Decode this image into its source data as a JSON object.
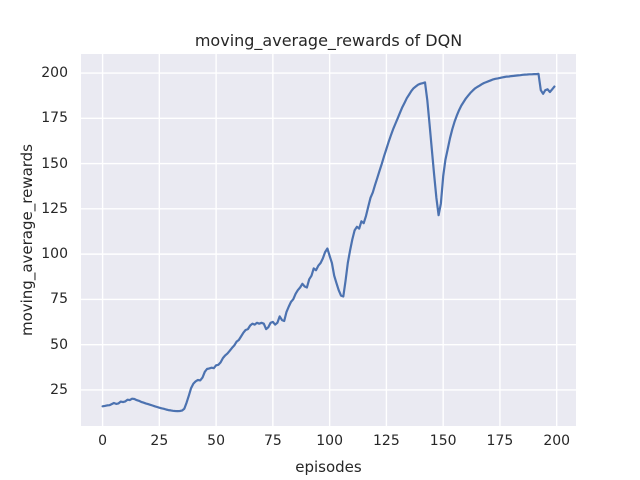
{
  "chart_data": {
    "type": "line",
    "title": "moving_average_rewards of DQN",
    "xlabel": "episodes",
    "ylabel": "moving_average_rewards",
    "x_ticks": [
      0,
      25,
      50,
      75,
      100,
      125,
      150,
      175,
      200
    ],
    "y_ticks": [
      25,
      50,
      75,
      100,
      125,
      150,
      175,
      200
    ],
    "xlim": [
      -9.5,
      208.5
    ],
    "ylim": [
      5.1,
      210.5
    ],
    "grid": true,
    "legend": false,
    "style": {
      "figure_bg": "#FFFFFF",
      "plot_bg": "#EAEAF2",
      "grid_color": "#FFFFFF",
      "line_color": "#4C72B0",
      "text_color": "#262626",
      "line_width": 2.2
    },
    "series": [
      {
        "name": "moving_average_rewards",
        "points": [
          [
            0,
            16.0
          ],
          [
            1,
            16.2
          ],
          [
            2,
            16.5
          ],
          [
            3,
            16.6
          ],
          [
            4,
            17.2
          ],
          [
            5,
            17.8
          ],
          [
            6,
            17.3
          ],
          [
            7,
            17.6
          ],
          [
            8,
            18.6
          ],
          [
            9,
            18.3
          ],
          [
            10,
            18.7
          ],
          [
            11,
            19.6
          ],
          [
            12,
            19.4
          ],
          [
            13,
            20.2
          ],
          [
            14,
            20.0
          ],
          [
            15,
            19.4
          ],
          [
            16,
            19.0
          ],
          [
            17,
            18.4
          ],
          [
            18,
            18.0
          ],
          [
            19,
            17.6
          ],
          [
            20,
            17.2
          ],
          [
            21,
            16.8
          ],
          [
            22,
            16.4
          ],
          [
            23,
            16.0
          ],
          [
            24,
            15.6
          ],
          [
            25,
            15.2
          ],
          [
            26,
            14.9
          ],
          [
            27,
            14.6
          ],
          [
            28,
            14.2
          ],
          [
            29,
            13.9
          ],
          [
            30,
            13.7
          ],
          [
            31,
            13.5
          ],
          [
            32,
            13.4
          ],
          [
            33,
            13.3
          ],
          [
            34,
            13.4
          ],
          [
            35,
            13.6
          ],
          [
            36,
            14.6
          ],
          [
            37,
            18.0
          ],
          [
            38,
            22.0
          ],
          [
            39,
            26.0
          ],
          [
            40,
            28.5
          ],
          [
            41,
            29.8
          ],
          [
            42,
            30.5
          ],
          [
            43,
            30.3
          ],
          [
            44,
            31.8
          ],
          [
            45,
            35.0
          ],
          [
            46,
            36.6
          ],
          [
            47,
            36.9
          ],
          [
            48,
            37.3
          ],
          [
            49,
            37.0
          ],
          [
            50,
            38.6
          ],
          [
            51,
            38.9
          ],
          [
            52,
            40.2
          ],
          [
            53,
            42.6
          ],
          [
            54,
            44.1
          ],
          [
            55,
            45.2
          ],
          [
            56,
            46.6
          ],
          [
            57,
            48.2
          ],
          [
            58,
            49.6
          ],
          [
            59,
            51.6
          ],
          [
            60,
            52.6
          ],
          [
            61,
            54.6
          ],
          [
            62,
            56.6
          ],
          [
            63,
            58.1
          ],
          [
            64,
            58.6
          ],
          [
            65,
            60.6
          ],
          [
            66,
            61.6
          ],
          [
            67,
            61.1
          ],
          [
            68,
            62.1
          ],
          [
            69,
            61.6
          ],
          [
            70,
            62.1
          ],
          [
            71,
            61.6
          ],
          [
            72,
            58.6
          ],
          [
            73,
            59.6
          ],
          [
            74,
            62.1
          ],
          [
            75,
            62.6
          ],
          [
            76,
            61.1
          ],
          [
            77,
            62.1
          ],
          [
            78,
            65.6
          ],
          [
            79,
            63.6
          ],
          [
            80,
            63.1
          ],
          [
            81,
            68.1
          ],
          [
            82,
            71.1
          ],
          [
            83,
            73.6
          ],
          [
            84,
            75.1
          ],
          [
            85,
            78.1
          ],
          [
            86,
            80.1
          ],
          [
            87,
            81.6
          ],
          [
            88,
            83.6
          ],
          [
            89,
            82.1
          ],
          [
            90,
            81.6
          ],
          [
            91,
            86.1
          ],
          [
            92,
            88.1
          ],
          [
            93,
            92.1
          ],
          [
            94,
            91.1
          ],
          [
            95,
            93.6
          ],
          [
            96,
            95.1
          ],
          [
            97,
            97.6
          ],
          [
            98,
            101.1
          ],
          [
            99,
            103.1
          ],
          [
            100,
            99.1
          ],
          [
            101,
            95.1
          ],
          [
            102,
            88.1
          ],
          [
            103,
            84.1
          ],
          [
            104,
            80.1
          ],
          [
            105,
            77.1
          ],
          [
            106,
            76.6
          ],
          [
            107,
            85.1
          ],
          [
            108,
            95.1
          ],
          [
            109,
            102.1
          ],
          [
            110,
            108.1
          ],
          [
            111,
            113.1
          ],
          [
            112,
            115.1
          ],
          [
            113,
            114.1
          ],
          [
            114,
            118.1
          ],
          [
            115,
            117.1
          ],
          [
            116,
            121.1
          ],
          [
            117,
            126.1
          ],
          [
            118,
            131.1
          ],
          [
            119,
            134.1
          ],
          [
            120,
            138.1
          ],
          [
            121,
            142.1
          ],
          [
            122,
            146.1
          ],
          [
            123,
            150.1
          ],
          [
            124,
            154.1
          ],
          [
            125,
            158.1
          ],
          [
            126,
            162.1
          ],
          [
            127,
            165.6
          ],
          [
            128,
            169.1
          ],
          [
            129,
            172.1
          ],
          [
            130,
            175.1
          ],
          [
            131,
            178.1
          ],
          [
            132,
            181.1
          ],
          [
            133,
            183.6
          ],
          [
            134,
            186.1
          ],
          [
            135,
            188.1
          ],
          [
            136,
            190.1
          ],
          [
            137,
            191.6
          ],
          [
            138,
            192.6
          ],
          [
            139,
            193.6
          ],
          [
            140,
            194.1
          ],
          [
            141,
            194.4
          ],
          [
            142,
            194.8
          ],
          [
            143,
            185.0
          ],
          [
            144,
            172.0
          ],
          [
            145,
            158.0
          ],
          [
            146,
            144.0
          ],
          [
            147,
            131.0
          ],
          [
            148,
            121.5
          ],
          [
            149,
            128.0
          ],
          [
            150,
            143.0
          ],
          [
            151,
            152.0
          ],
          [
            152,
            158.0
          ],
          [
            153,
            164.0
          ],
          [
            154,
            169.0
          ],
          [
            155,
            173.0
          ],
          [
            156,
            176.5
          ],
          [
            157,
            179.5
          ],
          [
            158,
            182.0
          ],
          [
            159,
            184.0
          ],
          [
            160,
            186.0
          ],
          [
            161,
            187.5
          ],
          [
            162,
            189.0
          ],
          [
            163,
            190.3
          ],
          [
            164,
            191.5
          ],
          [
            165,
            192.3
          ],
          [
            166,
            193.0
          ],
          [
            167,
            193.8
          ],
          [
            168,
            194.5
          ],
          [
            169,
            195.0
          ],
          [
            170,
            195.5
          ],
          [
            171,
            196.0
          ],
          [
            172,
            196.5
          ],
          [
            173,
            196.8
          ],
          [
            174,
            197.0
          ],
          [
            175,
            197.3
          ],
          [
            176,
            197.6
          ],
          [
            177,
            197.8
          ],
          [
            178,
            198.0
          ],
          [
            179,
            198.1
          ],
          [
            180,
            198.3
          ],
          [
            181,
            198.4
          ],
          [
            182,
            198.6
          ],
          [
            183,
            198.7
          ],
          [
            184,
            198.8
          ],
          [
            185,
            199.0
          ],
          [
            186,
            199.1
          ],
          [
            187,
            199.2
          ],
          [
            188,
            199.3
          ],
          [
            189,
            199.3
          ],
          [
            190,
            199.4
          ],
          [
            191,
            199.4
          ],
          [
            192,
            199.5
          ],
          [
            193,
            190.5
          ],
          [
            194,
            188.5
          ],
          [
            195,
            190.5
          ],
          [
            196,
            191.0
          ],
          [
            197,
            189.5
          ],
          [
            198,
            191.0
          ],
          [
            199,
            192.5
          ]
        ]
      }
    ]
  }
}
